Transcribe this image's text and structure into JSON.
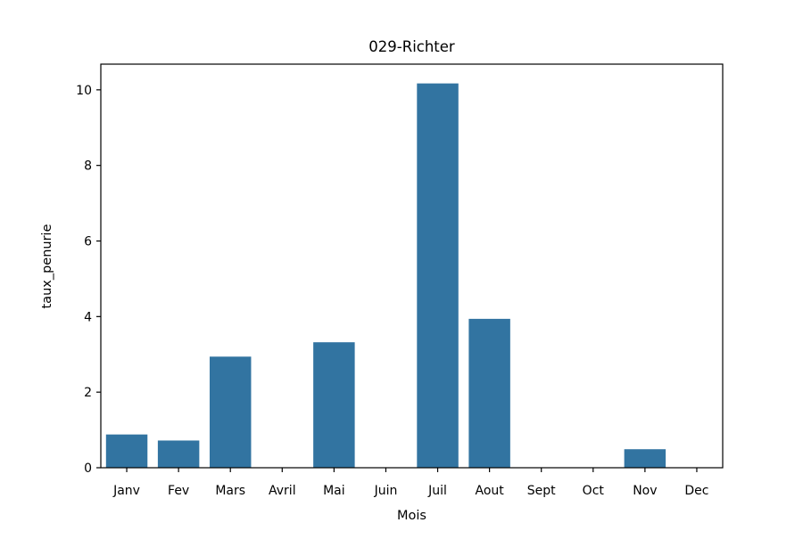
{
  "chart_data": {
    "type": "bar",
    "title": "029-Richter",
    "xlabel": "Mois",
    "ylabel": "taux_penurie",
    "categories": [
      "Janv",
      "Fev",
      "Mars",
      "Avril",
      "Mai",
      "Juin",
      "Juil",
      "Aout",
      "Sept",
      "Oct",
      "Nov",
      "Dec"
    ],
    "values": [
      0.88,
      0.72,
      2.94,
      0,
      3.32,
      0,
      10.17,
      3.94,
      0,
      0,
      0.49,
      0
    ],
    "ylim": [
      0,
      10.68
    ],
    "yticks": [
      0,
      2,
      4,
      6,
      8,
      10
    ],
    "grid": false,
    "legend": "none",
    "bar_color": "#3274a1",
    "axis_color": "#000000"
  }
}
